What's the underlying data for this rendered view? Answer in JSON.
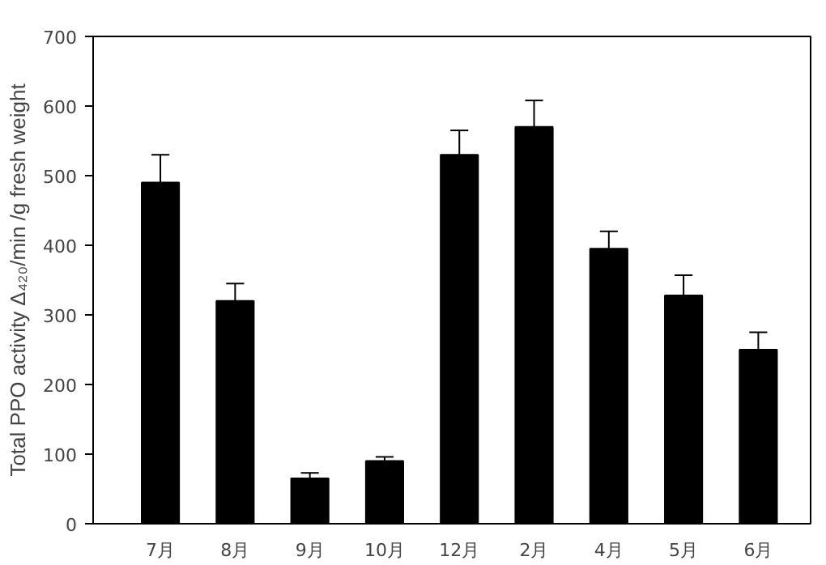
{
  "chart_data": {
    "type": "bar",
    "ylabel": "Total PPO activity Δ₄₂₀/min /g fresh weight",
    "categories": [
      "7月",
      "8月",
      "9月",
      "10月",
      "12月",
      "2月",
      "4月",
      "5月",
      "6月"
    ],
    "values": [
      490,
      320,
      65,
      90,
      530,
      570,
      395,
      328,
      250
    ],
    "errors": [
      [
        490,
        530
      ],
      [
        320,
        345
      ],
      [
        65,
        73
      ],
      [
        90,
        96
      ],
      [
        530,
        565
      ],
      [
        570,
        608
      ],
      [
        395,
        420
      ],
      [
        328,
        357
      ],
      [
        250,
        275
      ]
    ],
    "color": "#000000",
    "ylim": [
      0,
      700
    ],
    "yticks": [
      0,
      100,
      200,
      300,
      400,
      500,
      600,
      700
    ],
    "grid": false
  }
}
